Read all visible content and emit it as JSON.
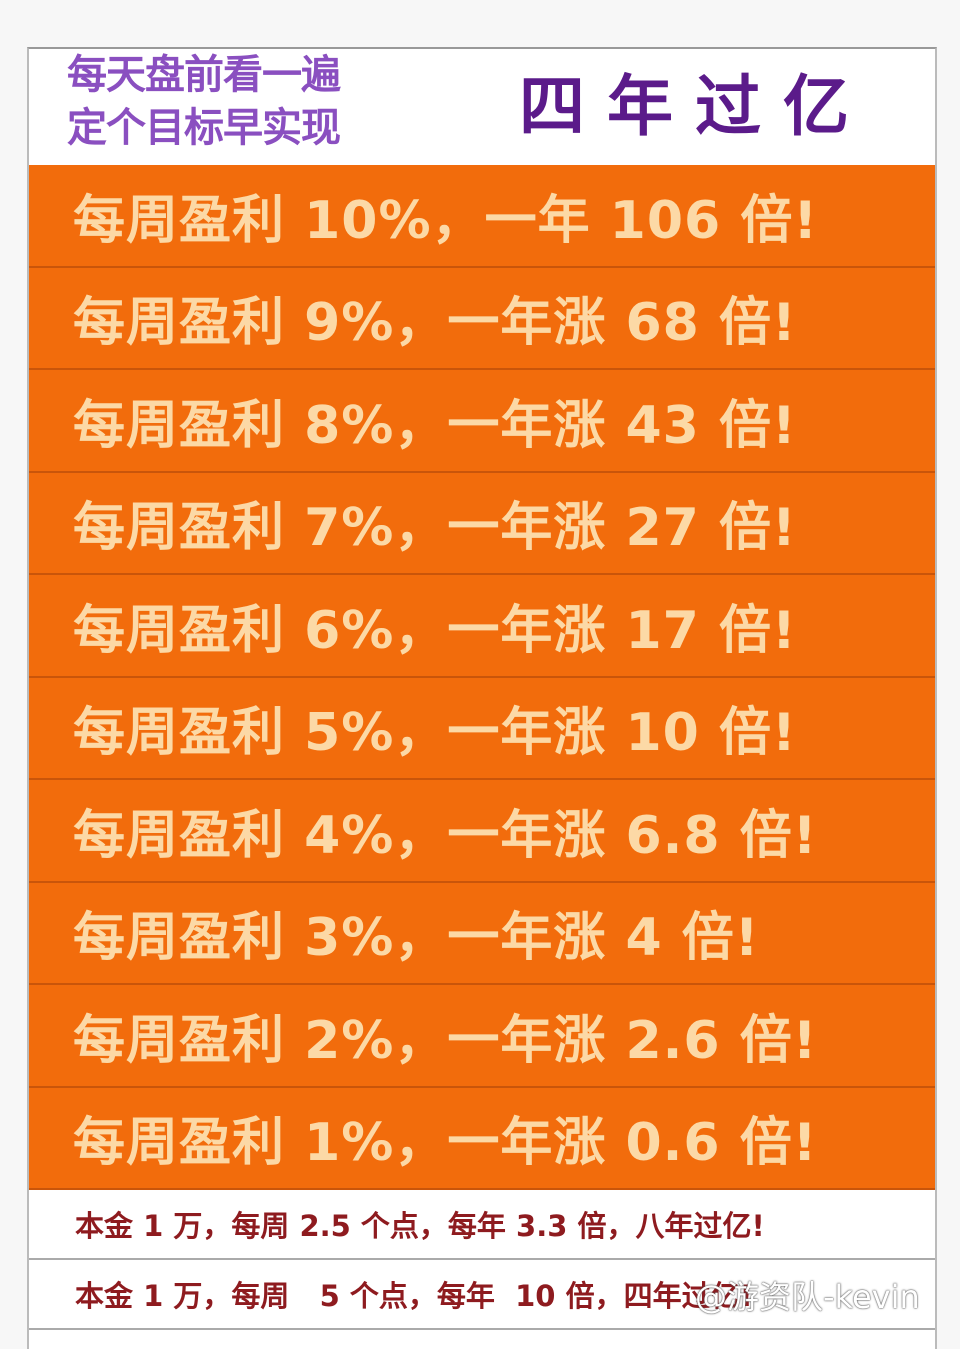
{
  "header": {
    "slogan_line1": "每天盘前看一遍",
    "slogan_line2": "定个目标早实现",
    "headline": "四年过亿"
  },
  "rows": [
    "每周盈利 10%，一年 106 倍!",
    "每周盈利 9%，一年涨 68 倍!",
    "每周盈利 8%，一年涨 43 倍!",
    "每周盈利 7%，一年涨 27 倍!",
    "每周盈利 6%，一年涨 17 倍!",
    "每周盈利 5%，一年涨 10 倍!",
    "每周盈利 4%，一年涨 6.8 倍!",
    "每周盈利 3%，一年涨 4 倍!",
    "每周盈利 2%，一年涨 2.6 倍!",
    "每周盈利 1%，一年涨 0.6 倍!"
  ],
  "footer": [
    "本金 1 万，每周 2.5 个点，每年 3.3 倍，八年过亿!",
    "本金 1 万，每周   5 个点，每年  10 倍，四年过亿!"
  ],
  "watermark": "@游资队-kevin",
  "colors": {
    "row_bg": "#f26c0c",
    "row_text": "#fcd9a6",
    "slogan": "#8a4fc0",
    "headline": "#5b1b8a",
    "footer_text": "#8e1b1f"
  }
}
